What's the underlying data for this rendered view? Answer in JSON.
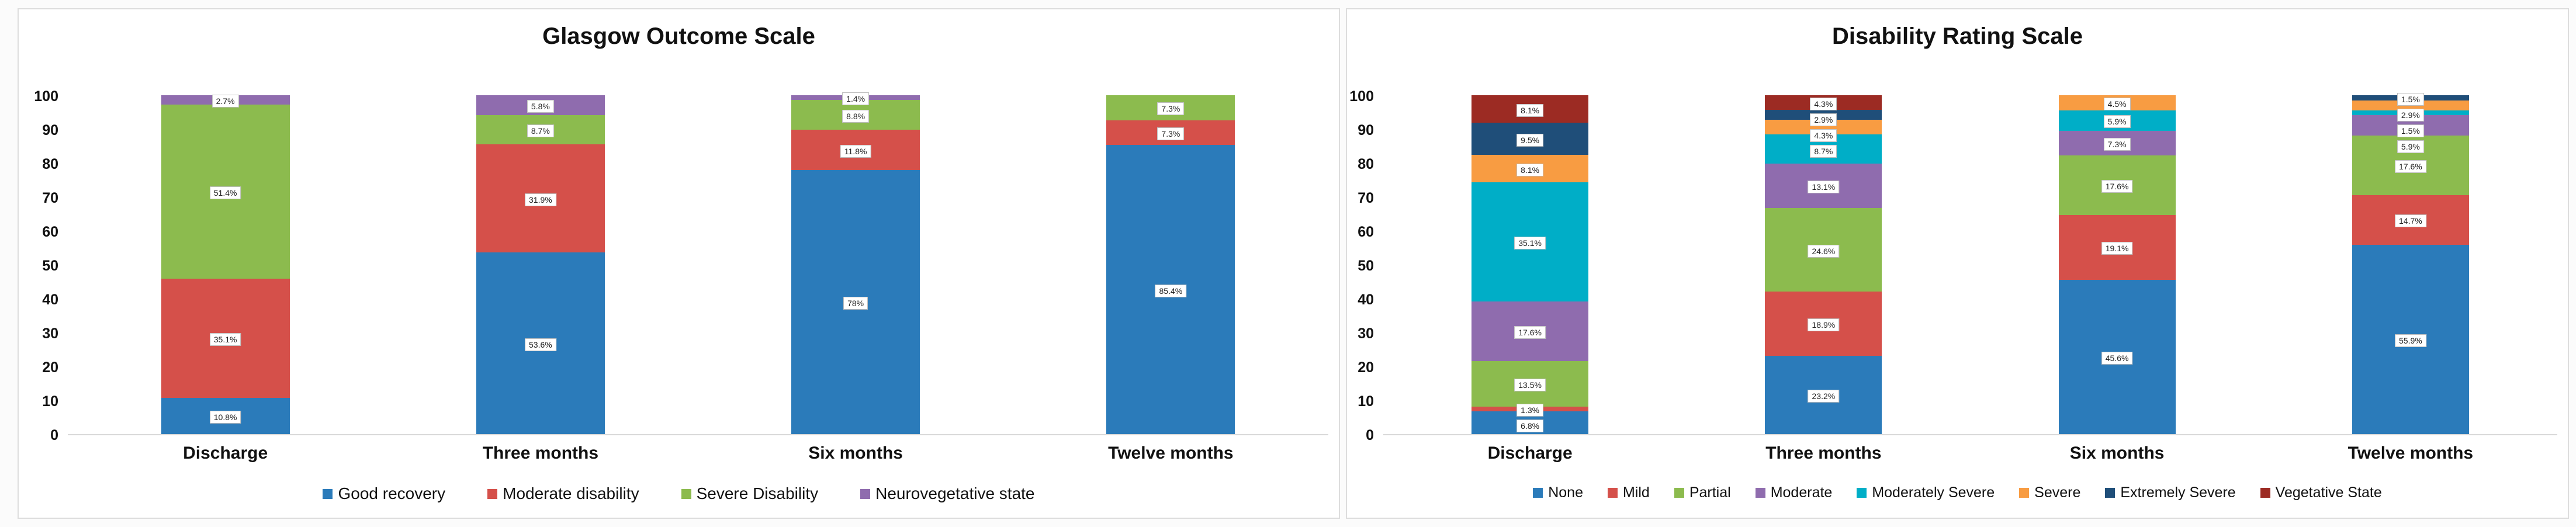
{
  "chart_data": [
    {
      "type": "bar",
      "stacked": true,
      "title": "Glasgow Outcome Scale",
      "categories": [
        "Discharge",
        "Three months",
        "Six months",
        "Twelve months"
      ],
      "ylim": [
        0,
        100
      ],
      "y_ticks": [
        0,
        10,
        20,
        30,
        40,
        50,
        60,
        70,
        80,
        90,
        100
      ],
      "grid": false,
      "legend_position": "bottom",
      "series": [
        {
          "name": "Good recovery",
          "color": "#2B7BBA",
          "values": [
            10.8,
            53.6,
            78.0,
            85.4
          ],
          "value_labels": [
            "10.8%",
            "53.6%",
            "78%",
            "85.4%"
          ]
        },
        {
          "name": "Moderate disability",
          "color": "#D5504A",
          "values": [
            35.1,
            31.9,
            11.8,
            7.3
          ],
          "value_labels": [
            "35.1%",
            "31.9%",
            "11.8%",
            "7.3%"
          ]
        },
        {
          "name": "Severe Disability",
          "color": "#8CBB4E",
          "values": [
            51.4,
            8.7,
            8.8,
            7.3
          ],
          "value_labels": [
            "51.4%",
            "8.7%",
            "8.8%",
            "7.3%"
          ]
        },
        {
          "name": "Neurovegetative state",
          "color": "#8F6CAE",
          "values": [
            2.7,
            5.8,
            1.4,
            0
          ],
          "value_labels": [
            "2.7%",
            "5.8%",
            "1.4%",
            ""
          ]
        }
      ]
    },
    {
      "type": "bar",
      "stacked": true,
      "title": "Disability Rating Scale",
      "categories": [
        "Discharge",
        "Three months",
        "Six months",
        "Twelve months"
      ],
      "ylim": [
        0,
        100
      ],
      "y_ticks": [
        0,
        10,
        20,
        30,
        40,
        50,
        60,
        70,
        80,
        90,
        100
      ],
      "grid": false,
      "legend_position": "bottom",
      "series": [
        {
          "name": "None",
          "color": "#2B7BBA",
          "values": [
            6.8,
            23.2,
            45.6,
            55.9
          ],
          "value_labels": [
            "6.8%",
            "23.2%",
            "45.6%",
            "55.9%"
          ]
        },
        {
          "name": "Mild",
          "color": "#D5504A",
          "values": [
            1.3,
            18.9,
            19.1,
            14.7
          ],
          "value_labels": [
            "1.3%",
            "18.9%",
            "19.1%",
            "14.7%"
          ]
        },
        {
          "name": "Partial",
          "color": "#8CBB4E",
          "values": [
            13.5,
            24.6,
            17.6,
            17.6
          ],
          "value_labels": [
            "13.5%",
            "24.6%",
            "17.6%",
            "17.6%"
          ]
        },
        {
          "name": "Moderate",
          "color": "#8F6CAE",
          "values": [
            17.6,
            13.1,
            7.3,
            5.9
          ],
          "value_labels": [
            "17.6%",
            "13.1%",
            "7.3%",
            "5.9%"
          ]
        },
        {
          "name": "Moderately Severe",
          "color": "#00AEC7",
          "values": [
            35.1,
            8.7,
            5.9,
            1.5
          ],
          "value_labels": [
            "35.1%",
            "8.7%",
            "5.9%",
            "1.5%"
          ]
        },
        {
          "name": "Severe",
          "color": "#F89C42",
          "values": [
            8.1,
            4.3,
            4.5,
            2.9
          ],
          "value_labels": [
            "8.1%",
            "4.3%",
            "4.5%",
            "2.9%"
          ]
        },
        {
          "name": "Extremely Severe",
          "color": "#1F4E79",
          "values": [
            9.5,
            2.9,
            0,
            1.5
          ],
          "value_labels": [
            "9.5%",
            "2.9%",
            "",
            "1.5%"
          ]
        },
        {
          "name": "Vegetative State",
          "color": "#9C2B23",
          "values": [
            8.1,
            4.3,
            0,
            0
          ],
          "value_labels": [
            "8.1%",
            "4.3%",
            "",
            ""
          ]
        }
      ]
    }
  ]
}
